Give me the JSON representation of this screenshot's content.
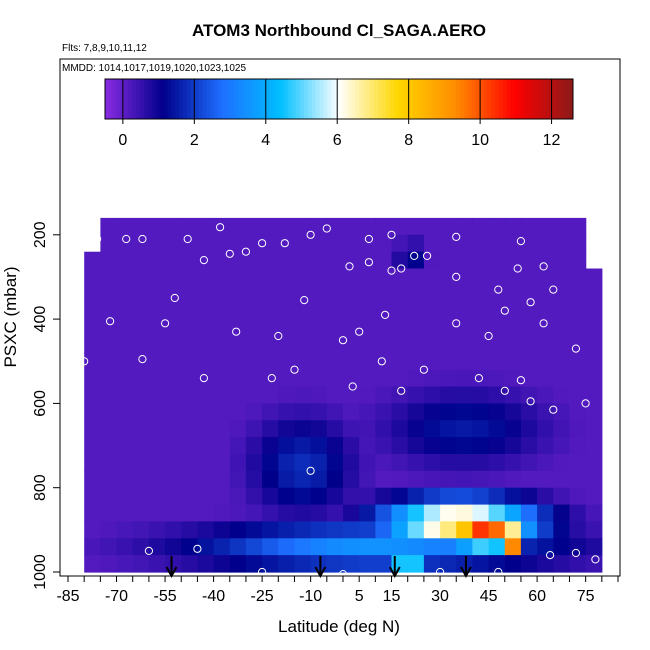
{
  "chart_data": {
    "type": "heatmap",
    "title": "ATOM3 Northbound Cl_SAGA.AERO",
    "flights_label": "Flts: 7,8,9,10,11,12",
    "dates_label": "MMDD: 1014,1017,1019,1020,1023,1025",
    "xlabel": "Latitude (deg N)",
    "ylabel": "PSXC (mbar)",
    "xlim": [
      -85,
      85
    ],
    "ylim": [
      1000,
      50
    ],
    "x_ticks": [
      -85,
      -70,
      -55,
      -40,
      -25,
      -10,
      5,
      15,
      30,
      45,
      60,
      75
    ],
    "y_ticks": [
      200,
      400,
      600,
      800,
      1000
    ],
    "colorbar": {
      "ticks": [
        0,
        2,
        4,
        6,
        8,
        10,
        12
      ],
      "range": [
        -0.5,
        12.6
      ],
      "colors": [
        "#8a2be2",
        "#00008b",
        "#1e6fff",
        "#00bfff",
        "#ffffff",
        "#ffd700",
        "#ff8c00",
        "#ff0000",
        "#8b1a1a"
      ]
    },
    "background_value": 0.15,
    "features": [
      {
        "lat": [
          -50,
          70
        ],
        "p": [
          880,
          1000
        ],
        "value": 3.5
      },
      {
        "lat": [
          -30,
          5
        ],
        "p": [
          620,
          880
        ],
        "value": 1.8
      },
      {
        "lat": [
          10,
          62
        ],
        "p": [
          820,
          950
        ],
        "value": 7.5
      },
      {
        "lat": [
          30,
          58
        ],
        "p": [
          850,
          950
        ],
        "value": 10.5
      },
      {
        "lat": [
          48,
          55
        ],
        "p": [
          900,
          960
        ],
        "value": 11.8
      },
      {
        "lat": [
          10,
          65
        ],
        "p": [
          560,
          760
        ],
        "value": 1.5
      },
      {
        "lat": [
          15,
          25
        ],
        "p": [
          940,
          1000
        ],
        "value": 7.0
      },
      {
        "lat": [
          16,
          26
        ],
        "p": [
          220,
          270
        ],
        "value": 2.0
      }
    ],
    "arrows_lat": [
      -53,
      -7,
      16,
      38
    ],
    "sample_points": [
      {
        "lat": -38,
        "p": 182
      },
      {
        "lat": -76,
        "p": 210
      },
      {
        "lat": -67,
        "p": 210
      },
      {
        "lat": -62,
        "p": 210
      },
      {
        "lat": -48,
        "p": 210
      },
      {
        "lat": -25,
        "p": 220
      },
      {
        "lat": -18,
        "p": 220
      },
      {
        "lat": -10,
        "p": 200
      },
      {
        "lat": -5,
        "p": 185
      },
      {
        "lat": 8,
        "p": 210
      },
      {
        "lat": 15,
        "p": 200
      },
      {
        "lat": 35,
        "p": 205
      },
      {
        "lat": 55,
        "p": 215
      },
      {
        "lat": 22,
        "p": 250
      },
      {
        "lat": 26,
        "p": 250
      },
      {
        "lat": -43,
        "p": 260
      },
      {
        "lat": -35,
        "p": 245
      },
      {
        "lat": -30,
        "p": 240
      },
      {
        "lat": 2,
        "p": 275
      },
      {
        "lat": 8,
        "p": 265
      },
      {
        "lat": 15,
        "p": 285
      },
      {
        "lat": 18,
        "p": 280
      },
      {
        "lat": 35,
        "p": 300
      },
      {
        "lat": 54,
        "p": 280
      },
      {
        "lat": 62,
        "p": 275
      },
      {
        "lat": -52,
        "p": 350
      },
      {
        "lat": -12,
        "p": 355
      },
      {
        "lat": 48,
        "p": 330
      },
      {
        "lat": 50,
        "p": 380
      },
      {
        "lat": 58,
        "p": 360
      },
      {
        "lat": 65,
        "p": 330
      },
      {
        "lat": -72,
        "p": 405
      },
      {
        "lat": -55,
        "p": 410
      },
      {
        "lat": -33,
        "p": 430
      },
      {
        "lat": -20,
        "p": 440
      },
      {
        "lat": 5,
        "p": 430
      },
      {
        "lat": 13,
        "p": 390
      },
      {
        "lat": 35,
        "p": 410
      },
      {
        "lat": 45,
        "p": 440
      },
      {
        "lat": 62,
        "p": 410
      },
      {
        "lat": 72,
        "p": 470
      },
      {
        "lat": -80,
        "p": 500
      },
      {
        "lat": -62,
        "p": 495
      },
      {
        "lat": -15,
        "p": 520
      },
      {
        "lat": 0,
        "p": 450
      },
      {
        "lat": 12,
        "p": 500
      },
      {
        "lat": 25,
        "p": 520
      },
      {
        "lat": 42,
        "p": 540
      },
      {
        "lat": 55,
        "p": 545
      },
      {
        "lat": -43,
        "p": 540
      },
      {
        "lat": -22,
        "p": 540
      },
      {
        "lat": 3,
        "p": 560
      },
      {
        "lat": 18,
        "p": 570
      },
      {
        "lat": 50,
        "p": 570
      },
      {
        "lat": 58,
        "p": 595
      },
      {
        "lat": 65,
        "p": 615
      },
      {
        "lat": 75,
        "p": 600
      },
      {
        "lat": -10,
        "p": 760
      },
      {
        "lat": 60,
        "p": 1020
      },
      {
        "lat": -60,
        "p": 950
      },
      {
        "lat": -45,
        "p": 945
      },
      {
        "lat": -25,
        "p": 1000
      },
      {
        "lat": 0,
        "p": 1005
      },
      {
        "lat": 30,
        "p": 1000
      },
      {
        "lat": 48,
        "p": 1000
      },
      {
        "lat": 64,
        "p": 960
      },
      {
        "lat": 72,
        "p": 955
      },
      {
        "lat": 78,
        "p": 970
      }
    ]
  }
}
